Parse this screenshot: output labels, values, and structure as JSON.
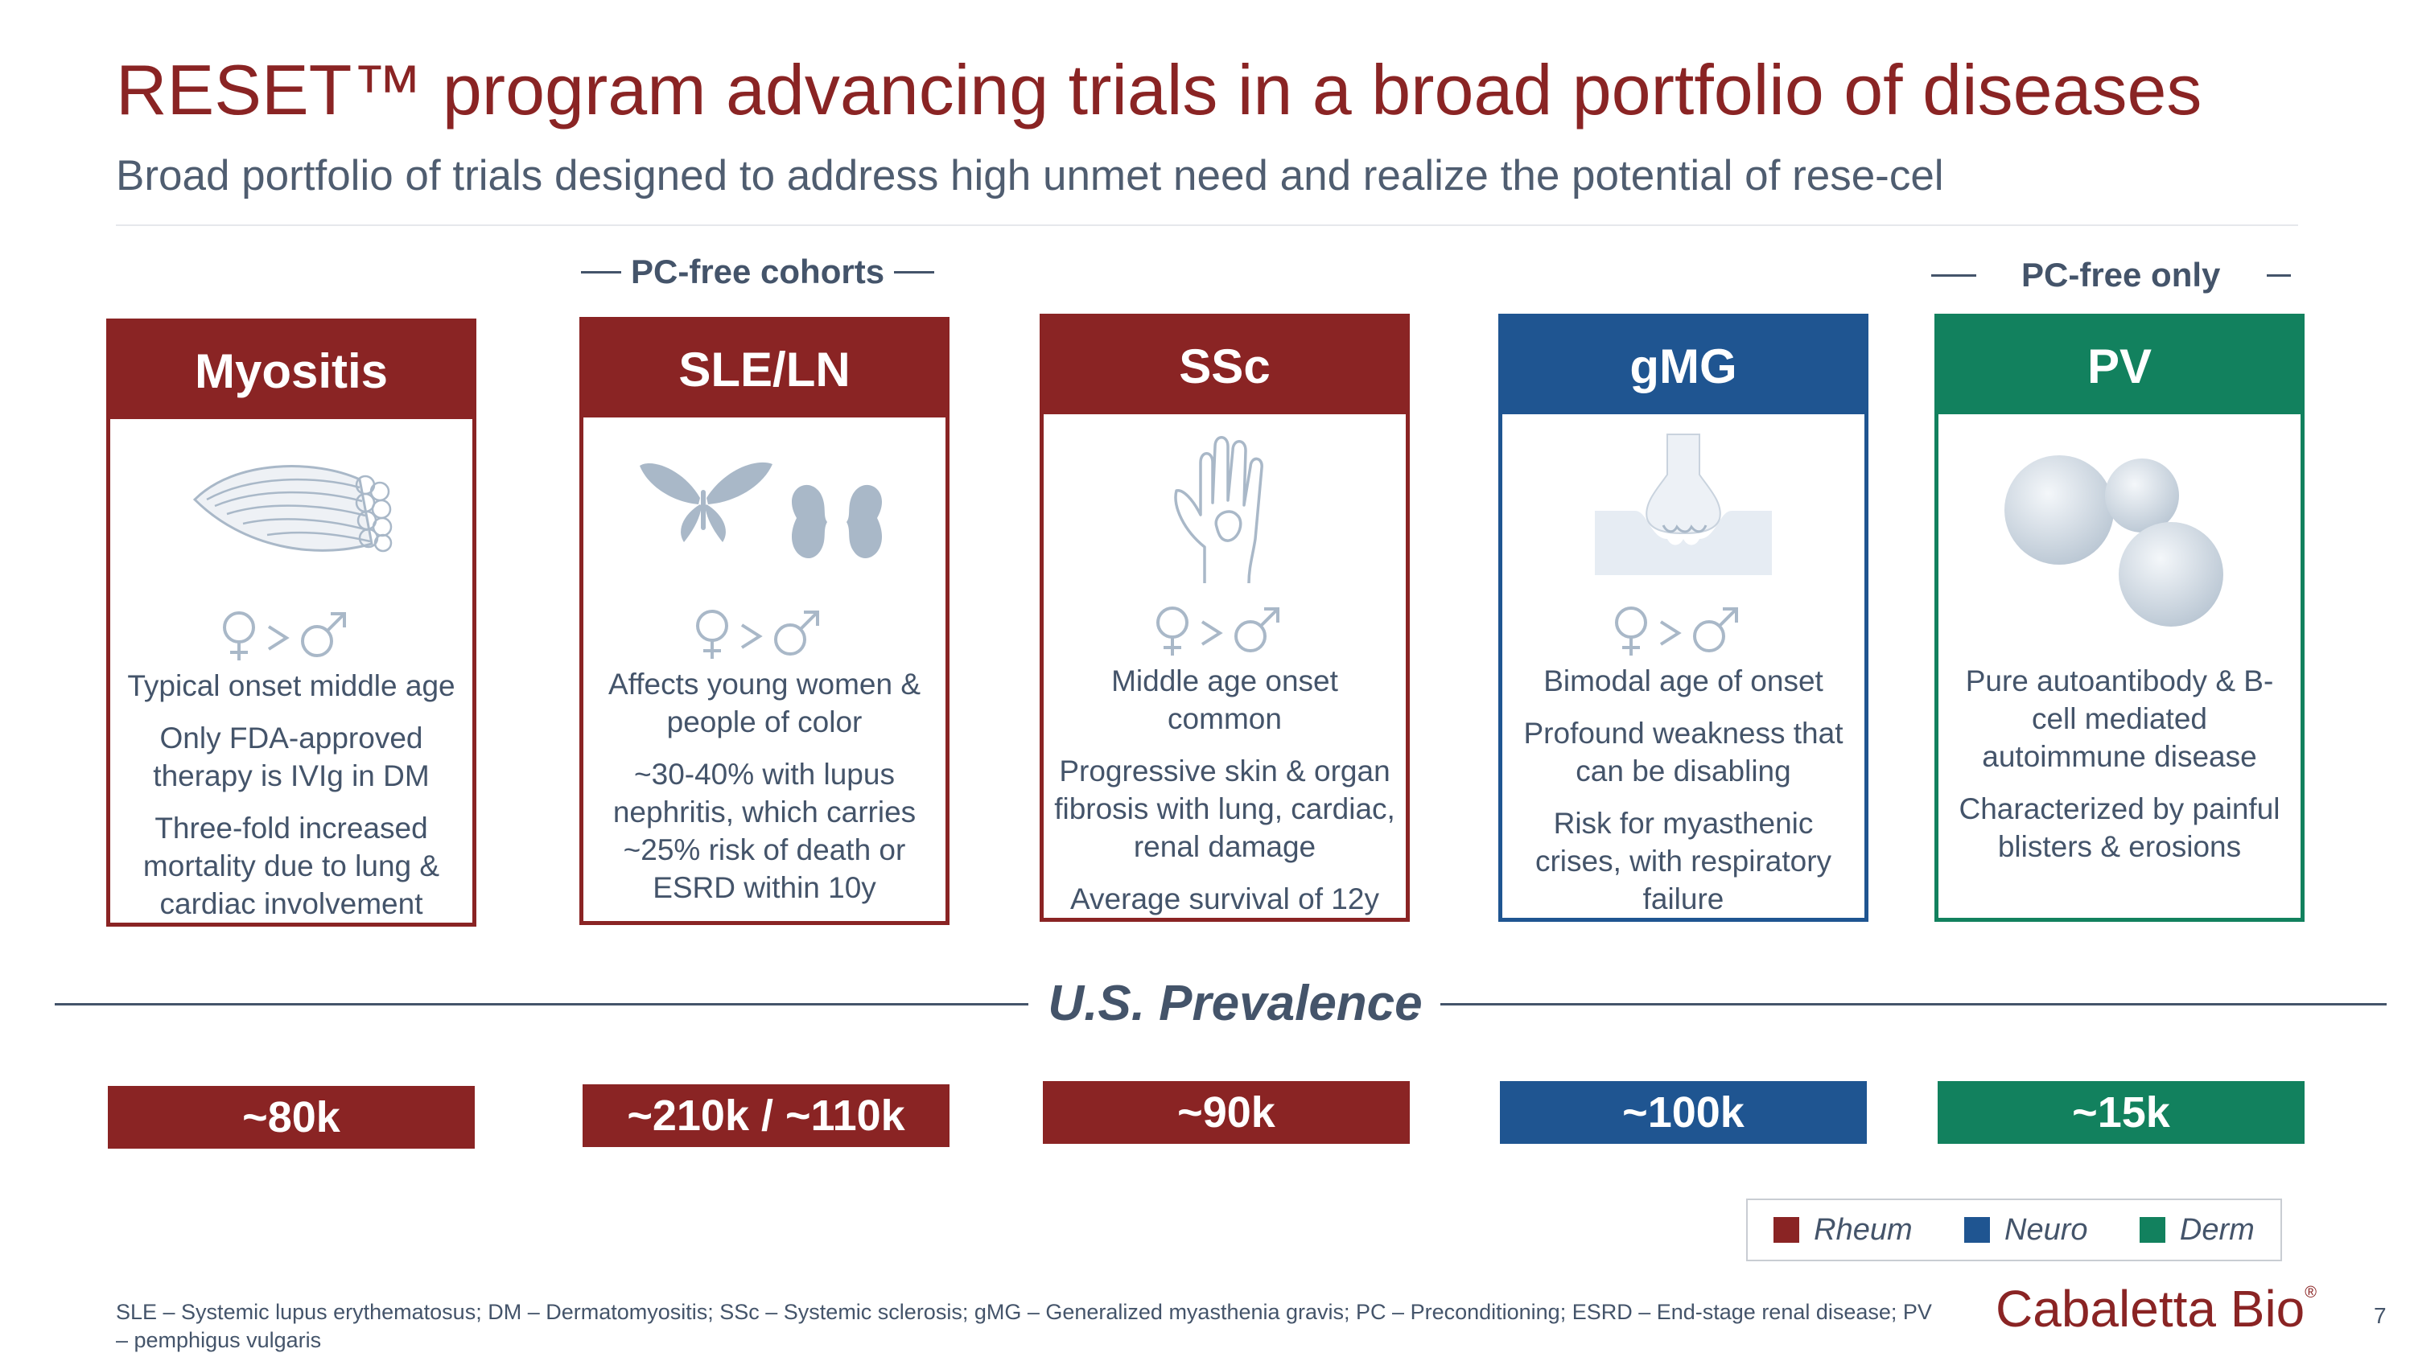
{
  "title": "RESET™ program advancing trials in a broad portfolio of diseases",
  "subtitle": "Broad portfolio of trials designed to address high unmet need and realize the potential of rese-cel",
  "group_labels": {
    "pc_free_cohorts": "PC-free cohorts",
    "pc_free_only": "PC-free only"
  },
  "gender_ratio": "♀>♂",
  "cards": [
    {
      "title": "Myositis",
      "category": "Rheum",
      "icon": "muscle-icon",
      "bullets": [
        "Typical onset middle age",
        "Only FDA-approved therapy is IVIg in DM",
        "Three-fold increased mortality due to lung & cardiac involvement"
      ]
    },
    {
      "title": "SLE/LN",
      "category": "Rheum",
      "icon": "butterfly-kidney-icon",
      "bullets": [
        "Affects young women & people of color",
        "~30-40% with lupus nephritis, which carries ~25% risk of death or ESRD within 10y"
      ]
    },
    {
      "title": "SSc",
      "category": "Rheum",
      "icon": "hand-icon",
      "bullets": [
        "Middle age onset common",
        "Progressive skin & organ fibrosis with lung, cardiac, renal damage",
        "Average survival of 12y"
      ]
    },
    {
      "title": "gMG",
      "category": "Neuro",
      "icon": "synapse-icon",
      "bullets": [
        "Bimodal age of onset",
        "Profound weakness that can be disabling",
        "Risk for myasthenic crises, with respiratory failure"
      ]
    },
    {
      "title": "PV",
      "category": "Derm",
      "icon": "cells-icon",
      "bullets": [
        "Pure autoantibody & B-cell mediated autoimmune disease",
        "Characterized by painful blisters & erosions"
      ]
    }
  ],
  "prevalence_label": "U.S. Prevalence",
  "prevalence": [
    "~80k",
    "~210k / ~110k",
    "~90k",
    "~100k",
    "~15k"
  ],
  "legend": [
    {
      "label": "Rheum",
      "color": "#8a2424"
    },
    {
      "label": "Neuro",
      "color": "#1f5591"
    },
    {
      "label": "Derm",
      "color": "#12815e"
    }
  ],
  "footnote": "SLE – Systemic lupus erythematosus; DM – Dermatomyositis; SSc – Systemic sclerosis; gMG – Generalized myasthenia gravis; PC – Preconditioning; ESRD – End-stage renal disease; PV – pemphigus vulgaris",
  "logo": {
    "text": "Cabaletta Bio",
    "mark": "®"
  },
  "page_number": "7"
}
